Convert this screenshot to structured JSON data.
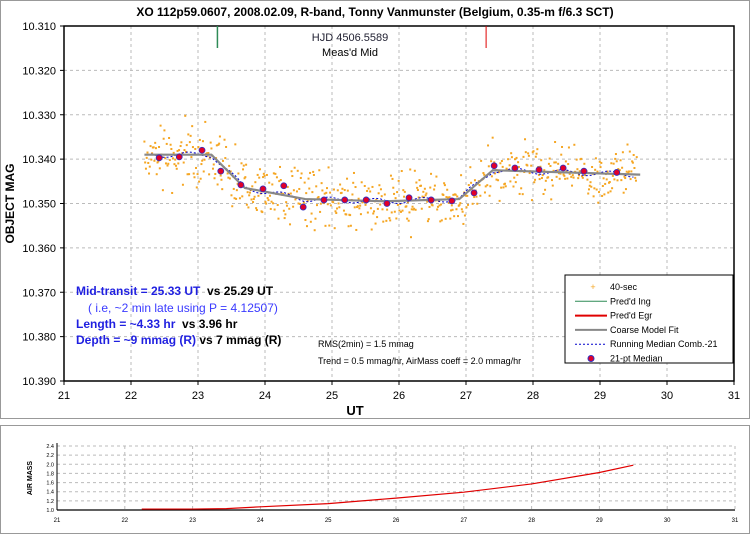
{
  "chart_data": [
    {
      "type": "scatter",
      "title": "XO 112p59.0607, 2008.02.09, R-band, Tonny Vanmunster (Belgium, 0.35-m f/6.3 SCT)",
      "xlabel": "UT",
      "ylabel": "OBJECT MAG",
      "xlim": [
        21,
        31
      ],
      "ylim": [
        10.31,
        10.39
      ],
      "y_inverted": true,
      "xticks": [
        "21",
        "22",
        "23",
        "24",
        "25",
        "26",
        "27",
        "28",
        "29",
        "30",
        "31"
      ],
      "yticks": [
        "10.310",
        "10.320",
        "10.330",
        "10.340",
        "10.350",
        "10.360",
        "10.370",
        "10.380",
        "10.390"
      ],
      "grid": true,
      "legend_position": "bottom-right",
      "legend": [
        "40-sec",
        "Pred'd Ing",
        "Pred'd Egr",
        "Coarse Model Fit",
        "Running Median Comb.-21",
        "21-pt Median"
      ],
      "pred_ingress_ut": 23.29,
      "pred_egress_ut": 27.3,
      "hjd_label": "HJD 4506.5589",
      "hjd_sublabel": "Meas'd Mid",
      "median_21pt": {
        "x": [
          22.42,
          22.72,
          23.06,
          23.34,
          23.64,
          23.97,
          24.28,
          24.57,
          24.88,
          25.19,
          25.51,
          25.82,
          26.15,
          26.48,
          26.79,
          27.12,
          27.42,
          27.73,
          28.09,
          28.45,
          28.76,
          29.25
        ],
        "y": [
          10.3397,
          10.3395,
          10.338,
          10.3427,
          10.3458,
          10.3467,
          10.346,
          10.3508,
          10.3492,
          10.3492,
          10.3492,
          10.35,
          10.3487,
          10.3492,
          10.3494,
          10.3476,
          10.3415,
          10.342,
          10.3424,
          10.342,
          10.3427,
          10.343
        ]
      },
      "model_fit": {
        "x": [
          22.2,
          23.2,
          23.7,
          24.6,
          25.8,
          26.9,
          27.4,
          29.6
        ],
        "y": [
          10.339,
          10.339,
          10.3465,
          10.349,
          10.3495,
          10.349,
          10.3425,
          10.3435
        ]
      },
      "scatter_40sec": {
        "x_range": [
          22.2,
          29.55
        ],
        "rms_mmag": 3
      },
      "annotations": {
        "mid1": "Mid-transit = 25.33 UT",
        "mid2": "vs 25.29 UT",
        "ie": "( i.e, ~2 min late using P = 4.12507)",
        "len1": "Length = ~4.33 hr",
        "len2": "vs 3.96 hr",
        "dep1": "Depth = ~9 mmag (R)",
        "dep2": "vs 7 mmag (R)",
        "rms": "RMS(2min) = 1.5 mmag",
        "trend": "Trend = 0.5 mmag/hr, AirMass coeff = 2.0 mmag/hr"
      },
      "colors": {
        "scatter": "#f5a623",
        "ingress": "#2e8b57",
        "egress": "#e00000",
        "model": "#888888",
        "running": "#0000cc",
        "median": "#e0002a"
      }
    },
    {
      "type": "line",
      "ylabel": "AIR MASS",
      "xlim": [
        21,
        31
      ],
      "ylim": [
        1.0,
        2.4
      ],
      "xticks": [
        "21",
        "22",
        "23",
        "24",
        "25",
        "26",
        "27",
        "28",
        "29",
        "30",
        "31"
      ],
      "yticks": [
        "1.0",
        "1.2",
        "1.4",
        "1.6",
        "1.8",
        "2.0",
        "2.2",
        "2.4"
      ],
      "x": [
        22.25,
        23,
        23.5,
        24,
        25,
        26,
        27,
        28,
        29,
        29.5
      ],
      "y": [
        1.02,
        1.02,
        1.03,
        1.07,
        1.14,
        1.26,
        1.39,
        1.57,
        1.82,
        1.98
      ],
      "color": "#e00000"
    }
  ]
}
